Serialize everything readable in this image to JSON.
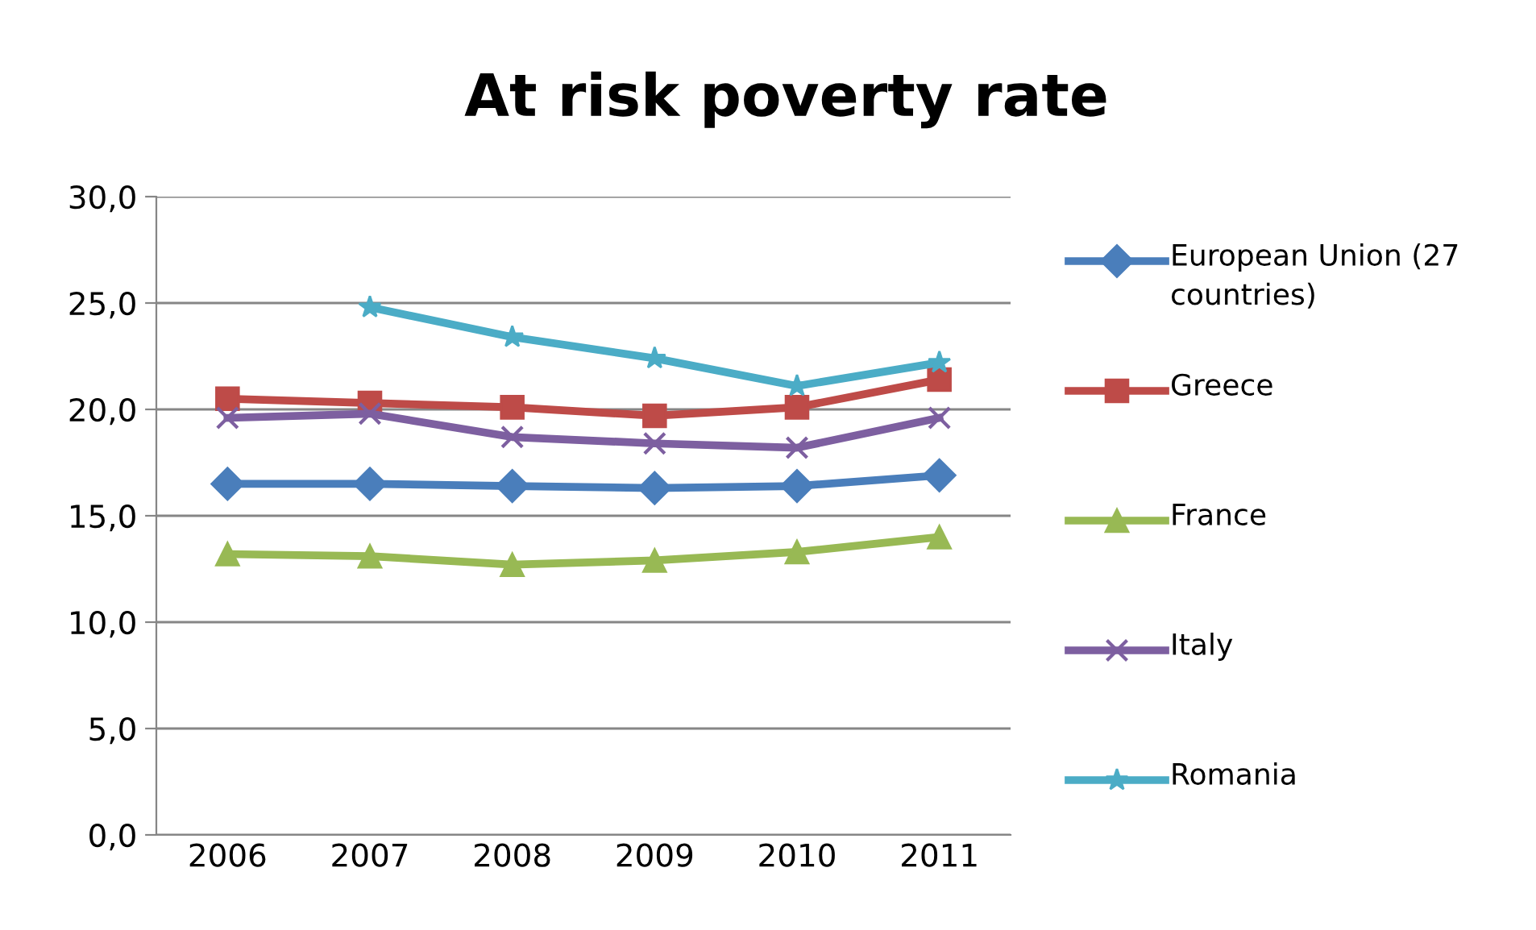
{
  "chart_data": {
    "type": "line",
    "title": "At risk poverty rate",
    "categories": [
      "2006",
      "2007",
      "2008",
      "2009",
      "2010",
      "2011"
    ],
    "series": [
      {
        "name": "European Union (27 countries)",
        "color": "#4a7ebb",
        "marker": "diamond",
        "values": [
          16.5,
          16.5,
          16.4,
          16.3,
          16.4,
          16.9
        ]
      },
      {
        "name": "Greece",
        "color": "#be4b48",
        "marker": "square",
        "values": [
          20.5,
          20.3,
          20.1,
          19.7,
          20.1,
          21.4
        ]
      },
      {
        "name": "France",
        "color": "#98b954",
        "marker": "triangle",
        "values": [
          13.2,
          13.1,
          12.7,
          12.9,
          13.3,
          14.0
        ]
      },
      {
        "name": "Italy",
        "color": "#7d5fa0",
        "marker": "cross",
        "values": [
          19.6,
          19.8,
          18.7,
          18.4,
          18.2,
          19.6
        ]
      },
      {
        "name": "Romania",
        "color": "#4bacc6",
        "marker": "star",
        "values": [
          null,
          24.8,
          23.4,
          22.4,
          21.1,
          22.2
        ]
      }
    ],
    "ylim": [
      0,
      30
    ],
    "yticks": [
      {
        "value": 0,
        "label": "0,0"
      },
      {
        "value": 5,
        "label": "5,0"
      },
      {
        "value": 10,
        "label": "10,0"
      },
      {
        "value": 15,
        "label": "15,0"
      },
      {
        "value": 20,
        "label": "20,0"
      },
      {
        "value": 25,
        "label": "25,0"
      },
      {
        "value": 30,
        "label": "30,0"
      }
    ],
    "grid": "y",
    "legend": "right",
    "line_style": "solid"
  }
}
